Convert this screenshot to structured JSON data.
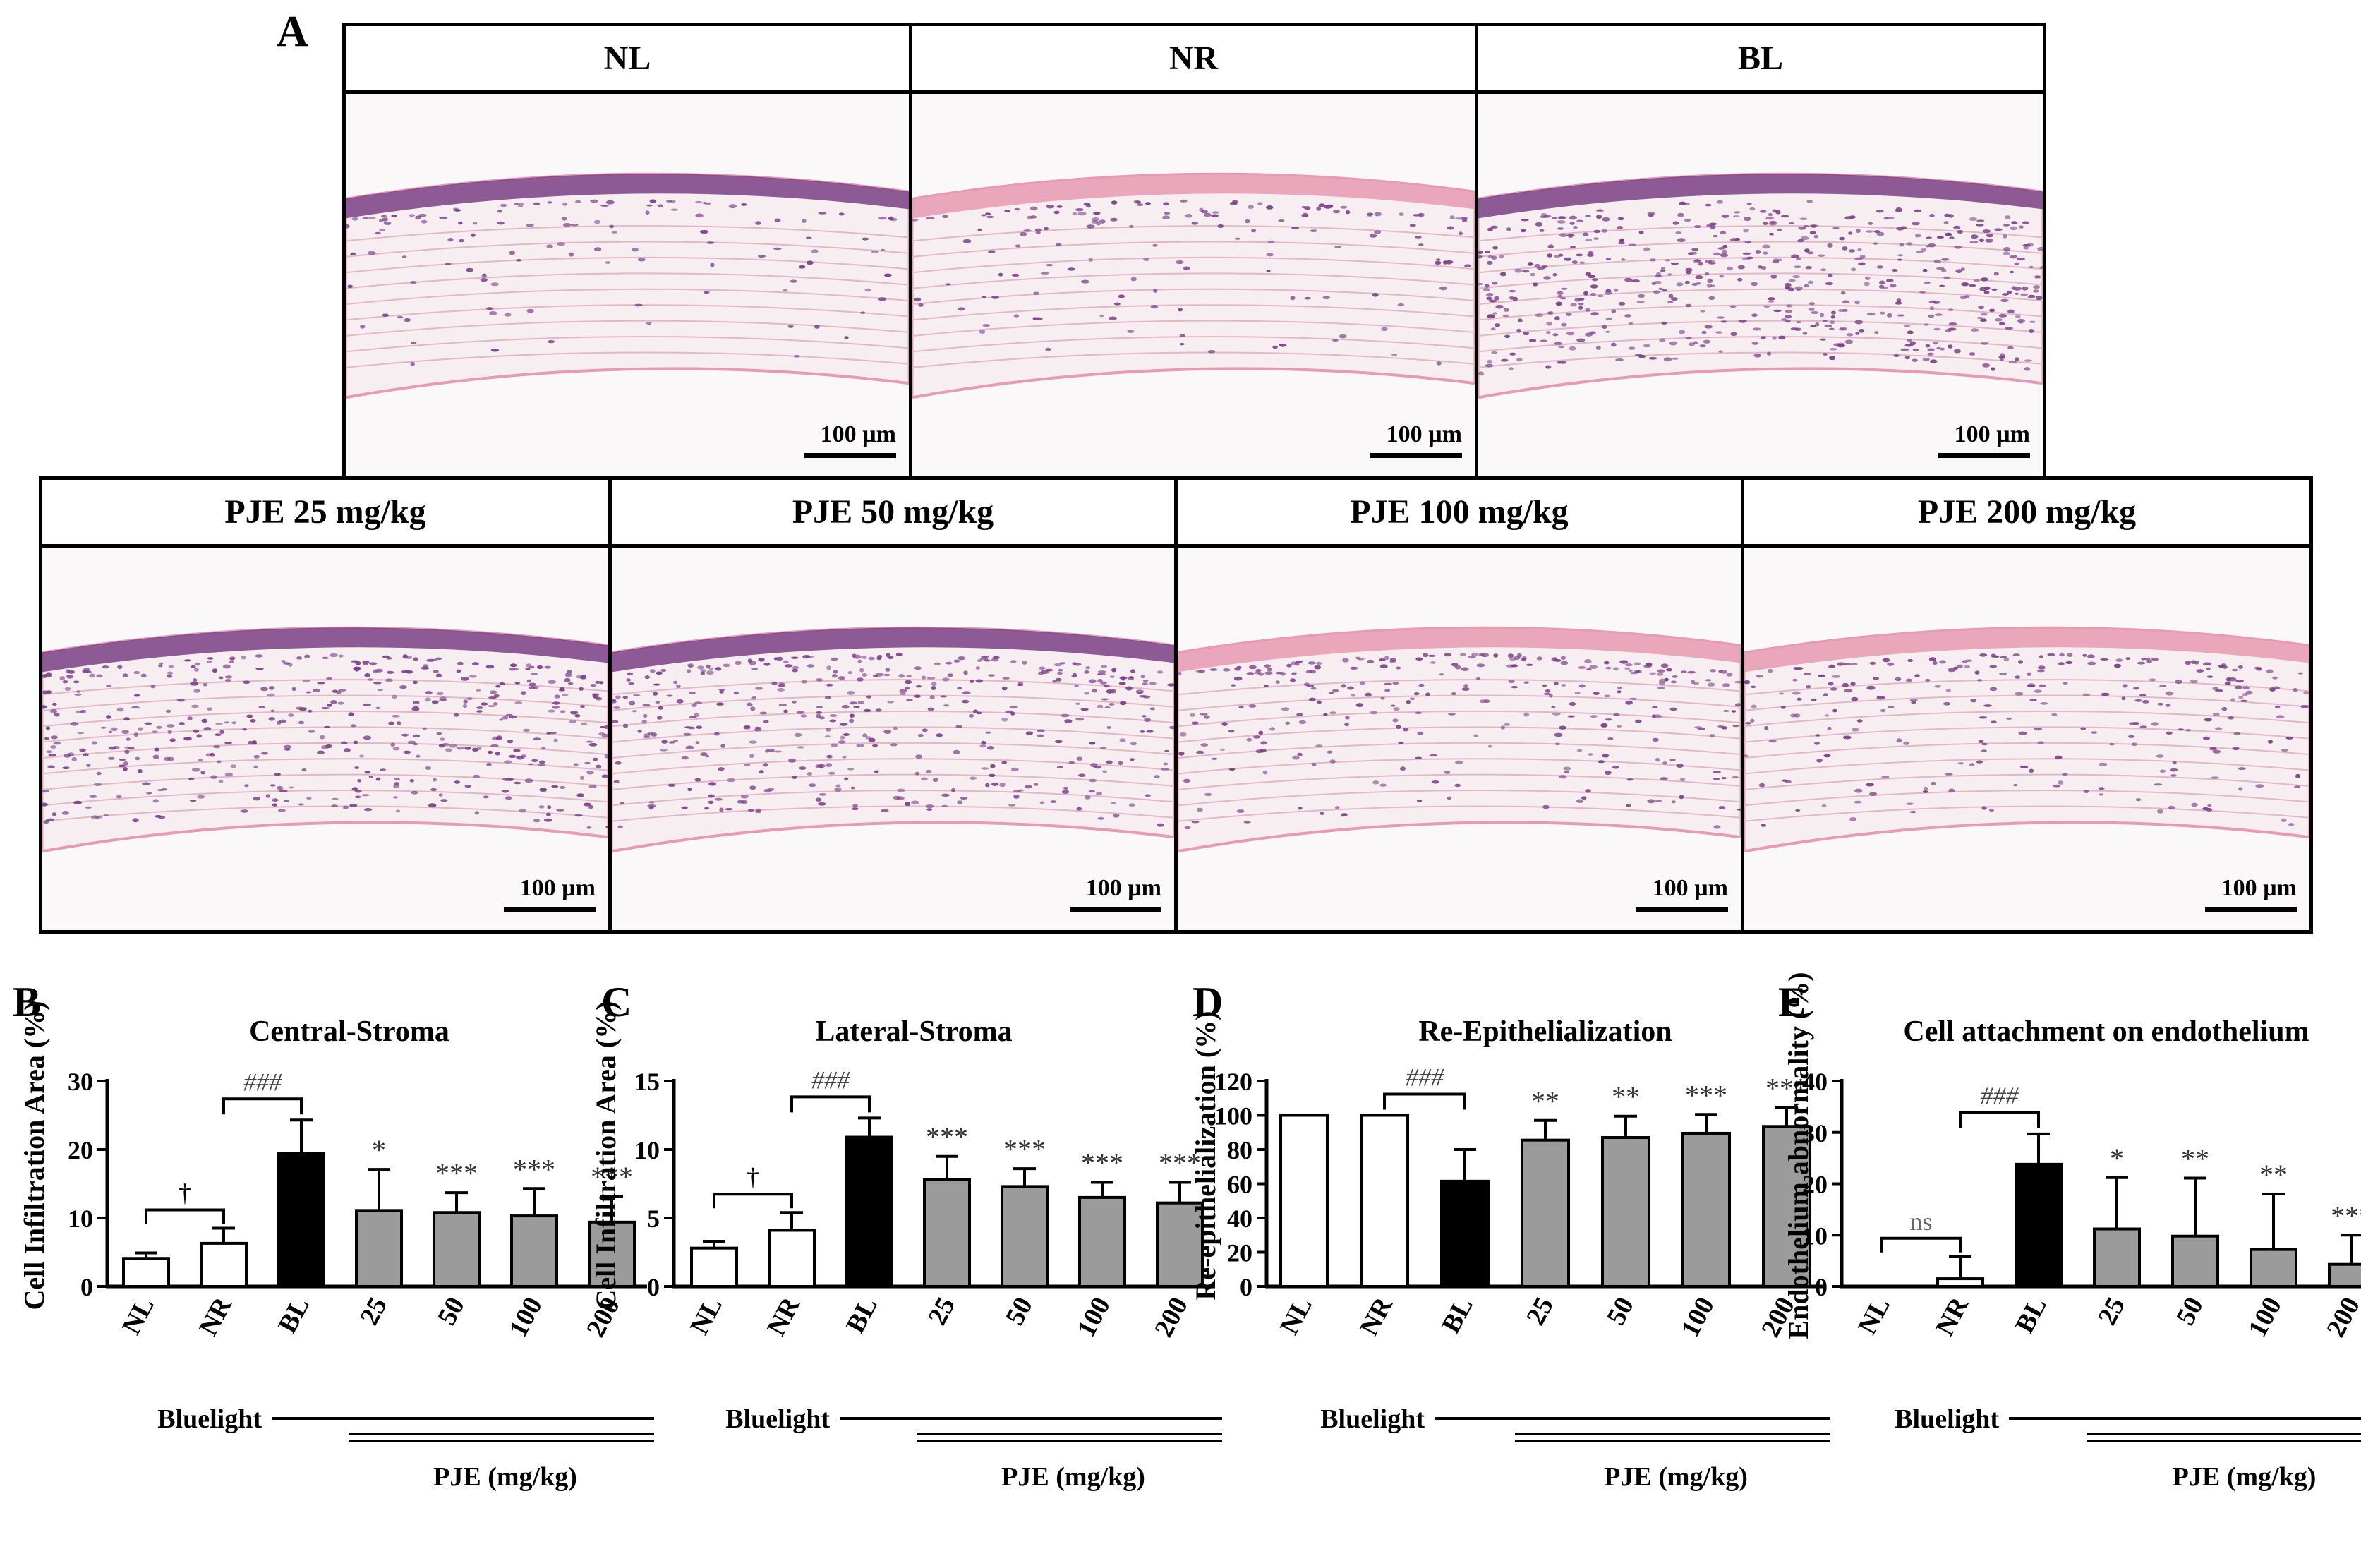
{
  "panel_a": {
    "letter": "A",
    "scale_text": "100 µm",
    "top_row": [
      {
        "label": "NL",
        "density": 0.12,
        "epithelium": "purple"
      },
      {
        "label": "NR",
        "density": 0.18,
        "epithelium": "pink"
      },
      {
        "label": "BL",
        "density": 0.95,
        "epithelium": "purple"
      }
    ],
    "bottom_row": [
      {
        "label": "PJE 25 mg/kg",
        "density": 0.8,
        "epithelium": "purple"
      },
      {
        "label": "PJE 50 mg/kg",
        "density": 0.7,
        "epithelium": "purple"
      },
      {
        "label": "PJE 100 mg/kg",
        "density": 0.45,
        "epithelium": "pink"
      },
      {
        "label": "PJE 200 mg/kg",
        "density": 0.4,
        "epithelium": "pink"
      }
    ]
  },
  "colors": {
    "white_bar": "#ffffff",
    "black_bar": "#000000",
    "gray_bar": "#9b9b9b",
    "he_background": "#f6eef1",
    "he_pink": "#e79ab3",
    "he_purple": "#7b3f86",
    "ns_gray": "#666666"
  },
  "chart_data": [
    {
      "panel": "B",
      "type": "bar",
      "title": "Central-Stroma",
      "ylabel": "Cell Infiltration Area (%)",
      "categories": [
        "NL",
        "NR",
        "BL",
        "25",
        "50",
        "100",
        "200"
      ],
      "values": [
        4.1,
        6.3,
        19.4,
        11.1,
        10.8,
        10.3,
        9.4
      ],
      "errors": [
        0.8,
        2.2,
        4.9,
        6.0,
        2.9,
        4.0,
        3.8
      ],
      "ylim": [
        0,
        30
      ],
      "yticks": [
        "0",
        "10",
        "20",
        "30"
      ],
      "sig_above": [
        "",
        "",
        "",
        "*",
        "***",
        "***",
        "***"
      ],
      "bracket_nl_nr": "†",
      "bracket_nr_bl": "###",
      "group_label": "Bluelight",
      "pje_label": "PJE (mg/kg)"
    },
    {
      "panel": "C",
      "type": "bar",
      "title": "Lateral-Stroma",
      "ylabel": "Cell Infiltration Area (%)",
      "categories": [
        "NL",
        "NR",
        "BL",
        "25",
        "50",
        "100",
        "200"
      ],
      "values": [
        2.8,
        4.1,
        10.9,
        7.8,
        7.3,
        6.5,
        6.1
      ],
      "errors": [
        0.5,
        1.3,
        1.4,
        1.7,
        1.3,
        1.1,
        1.5
      ],
      "ylim": [
        0,
        15
      ],
      "yticks": [
        "0",
        "5",
        "10",
        "15"
      ],
      "sig_above": [
        "",
        "",
        "",
        "***",
        "***",
        "***",
        "***"
      ],
      "bracket_nl_nr": "†",
      "bracket_nr_bl": "###",
      "group_label": "Bluelight",
      "pje_label": "PJE (mg/kg)"
    },
    {
      "panel": "D",
      "type": "bar",
      "title": "Re-Epithelialization",
      "ylabel": "Re-epithelialization (%)",
      "categories": [
        "NL",
        "NR",
        "BL",
        "25",
        "50",
        "100",
        "200"
      ],
      "values": [
        100,
        100,
        61.5,
        85.5,
        87,
        89.5,
        93.5
      ],
      "errors": [
        0,
        0,
        18.5,
        11.5,
        12.5,
        11,
        11
      ],
      "ylim": [
        0,
        120
      ],
      "yticks": [
        "0",
        "20",
        "40",
        "60",
        "80",
        "100",
        "120"
      ],
      "sig_above": [
        "",
        "",
        "",
        "**",
        "**",
        "***",
        "***"
      ],
      "bracket_nr_bl": "###",
      "group_label": "Bluelight",
      "pje_label": "PJE (mg/kg)"
    },
    {
      "panel": "E",
      "type": "bar",
      "title": "Cell attachment on endothelium",
      "ylabel": "Endothelium abnormality (%)",
      "categories": [
        "NL",
        "NR",
        "BL",
        "25",
        "50",
        "100",
        "200"
      ],
      "values": [
        0,
        1.5,
        23.8,
        11.2,
        9.8,
        7.2,
        4.3
      ],
      "errors": [
        0,
        4.3,
        5.9,
        10.0,
        11.3,
        10.8,
        5.7
      ],
      "ylim": [
        0,
        40
      ],
      "yticks": [
        "0",
        "10",
        "20",
        "30",
        "40"
      ],
      "sig_above": [
        "",
        "",
        "",
        "*",
        "**",
        "**",
        "***"
      ],
      "bracket_nl_nr": "ns",
      "bracket_nr_bl": "###",
      "group_label": "Bluelight",
      "pje_label": "PJE (mg/kg)"
    }
  ]
}
